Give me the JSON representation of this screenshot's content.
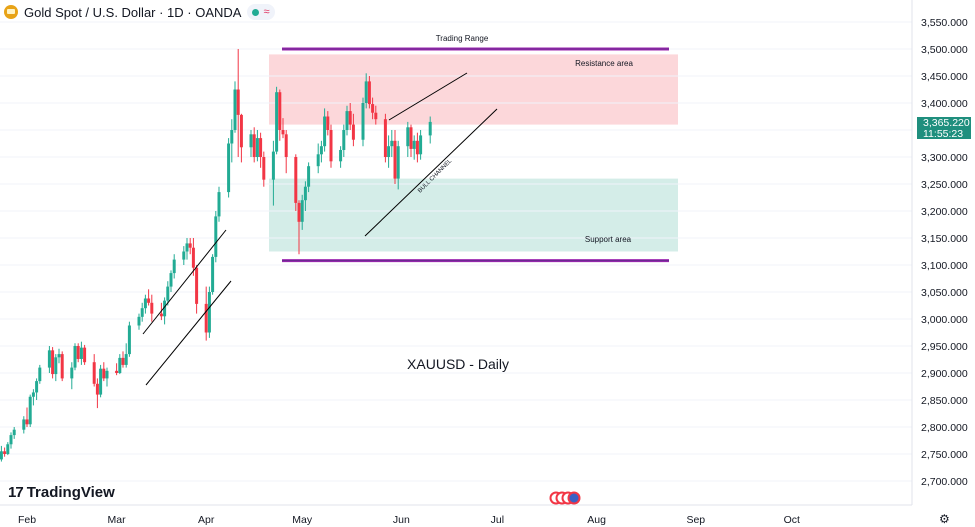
{
  "header": {
    "symbol_title": "Gold Spot / U.S. Dollar · 1D · OANDA",
    "market_status_icon": "green-dot-icon",
    "wave_icon": "≈"
  },
  "price_label": {
    "price": "3,365.220",
    "countdown": "11:55:23"
  },
  "branding": {
    "logo_text": "TradingView"
  },
  "colors": {
    "up": "#22ab94",
    "down": "#f23645",
    "resistance": "#fcd7da",
    "support": "#d4ede8",
    "range_line": "#9c27b0"
  },
  "chart_data": {
    "type": "candlestick",
    "title": "XAUUSD - Daily",
    "xlabel": "",
    "ylabel": "",
    "ylim": [
      2650,
      3580
    ],
    "y_ticks": [
      "3,550.000",
      "3,500.000",
      "3,450.000",
      "3,400.000",
      "3,350.000",
      "3,300.000",
      "3,250.000",
      "3,200.000",
      "3,150.000",
      "3,100.000",
      "3,050.000",
      "3,000.000",
      "2,950.000",
      "2,900.000",
      "2,850.000",
      "2,800.000",
      "2,750.000",
      "2,700.000"
    ],
    "y_tick_values": [
      3550,
      3500,
      3450,
      3400,
      3350,
      3300,
      3250,
      3200,
      3150,
      3100,
      3050,
      3000,
      2950,
      2900,
      2850,
      2800,
      2750,
      2700
    ],
    "x_ticks": [
      "Feb",
      "Mar",
      "Apr",
      "May",
      "Jun",
      "Jul",
      "Aug",
      "Sep",
      "Oct"
    ],
    "x_tick_days": [
      0,
      28,
      56,
      86,
      117,
      147,
      178,
      209,
      239
    ],
    "current_price": 3365.22,
    "candles": [
      [
        -8,
        2740,
        2765,
        2736,
        2755
      ],
      [
        -7,
        2755,
        2762,
        2745,
        2750
      ],
      [
        -6,
        2750,
        2772,
        2748,
        2768
      ],
      [
        -5,
        2768,
        2790,
        2760,
        2785
      ],
      [
        -4,
        2785,
        2800,
        2778,
        2795
      ],
      [
        -1,
        2795,
        2820,
        2788,
        2814
      ],
      [
        0,
        2814,
        2836,
        2800,
        2805
      ],
      [
        1,
        2805,
        2860,
        2800,
        2856
      ],
      [
        2,
        2856,
        2870,
        2840,
        2864
      ],
      [
        3,
        2864,
        2890,
        2850,
        2885
      ],
      [
        4,
        2885,
        2915,
        2880,
        2910
      ],
      [
        7,
        2910,
        2950,
        2900,
        2942
      ],
      [
        8,
        2942,
        2948,
        2890,
        2898
      ],
      [
        9,
        2898,
        2935,
        2885,
        2929
      ],
      [
        10,
        2929,
        2945,
        2918,
        2935
      ],
      [
        11,
        2935,
        2940,
        2885,
        2890
      ],
      [
        14,
        2890,
        2920,
        2870,
        2910
      ],
      [
        15,
        2910,
        2955,
        2905,
        2950
      ],
      [
        16,
        2950,
        2955,
        2920,
        2926
      ],
      [
        17,
        2926,
        2958,
        2915,
        2947
      ],
      [
        18,
        2947,
        2952,
        2915,
        2920
      ],
      [
        21,
        2920,
        2935,
        2875,
        2880
      ],
      [
        22,
        2880,
        2890,
        2835,
        2860
      ],
      [
        23,
        2860,
        2915,
        2855,
        2908
      ],
      [
        24,
        2908,
        2920,
        2885,
        2890
      ],
      [
        25,
        2890,
        2910,
        2875,
        2904
      ],
      [
        28,
        2904,
        2918,
        2896,
        2900
      ],
      [
        29,
        2900,
        2935,
        2898,
        2928
      ],
      [
        30,
        2928,
        2940,
        2910,
        2915
      ],
      [
        31,
        2915,
        2955,
        2910,
        2935
      ],
      [
        32,
        2935,
        2995,
        2930,
        2988
      ],
      [
        35,
        2988,
        3010,
        2980,
        3004
      ],
      [
        36,
        3004,
        3030,
        2995,
        3020
      ],
      [
        37,
        3020,
        3045,
        3010,
        3038
      ],
      [
        38,
        3038,
        3055,
        3025,
        3030
      ],
      [
        39,
        3030,
        3045,
        2995,
        3010
      ],
      [
        42,
        3010,
        3030,
        2998,
        3005
      ],
      [
        43,
        3005,
        3040,
        2990,
        3034
      ],
      [
        44,
        3034,
        3070,
        3025,
        3060
      ],
      [
        45,
        3060,
        3090,
        3050,
        3085
      ],
      [
        46,
        3085,
        3120,
        3075,
        3110
      ],
      [
        49,
        3110,
        3135,
        3100,
        3125
      ],
      [
        50,
        3125,
        3150,
        3110,
        3140
      ],
      [
        51,
        3140,
        3150,
        3120,
        3132
      ],
      [
        52,
        3132,
        3150,
        3080,
        3095
      ],
      [
        53,
        3095,
        3100,
        3010,
        3028
      ],
      [
        56,
        3028,
        3060,
        2960,
        2975
      ],
      [
        57,
        2975,
        3060,
        2965,
        3050
      ],
      [
        58,
        3050,
        3120,
        3045,
        3115
      ],
      [
        59,
        3115,
        3200,
        3105,
        3190
      ],
      [
        60,
        3190,
        3245,
        3180,
        3235
      ],
      [
        63,
        3235,
        3335,
        3225,
        3325
      ],
      [
        64,
        3325,
        3370,
        3290,
        3350
      ],
      [
        65,
        3350,
        3440,
        3345,
        3425
      ],
      [
        66,
        3425,
        3500,
        3300,
        3378
      ],
      [
        67,
        3378,
        3380,
        3290,
        3318
      ],
      [
        70,
        3318,
        3350,
        3300,
        3342
      ],
      [
        71,
        3342,
        3355,
        3290,
        3300
      ],
      [
        72,
        3300,
        3350,
        3292,
        3335
      ],
      [
        73,
        3335,
        3345,
        3280,
        3300
      ],
      [
        74,
        3300,
        3310,
        3245,
        3258
      ],
      [
        77,
        3258,
        3330,
        3210,
        3310
      ],
      [
        78,
        3310,
        3430,
        3305,
        3420
      ],
      [
        79,
        3420,
        3425,
        3330,
        3350
      ],
      [
        80,
        3350,
        3372,
        3335,
        3342
      ],
      [
        81,
        3342,
        3350,
        3270,
        3300
      ],
      [
        84,
        3300,
        3305,
        3200,
        3215
      ],
      [
        85,
        3215,
        3220,
        3120,
        3180
      ],
      [
        86,
        3180,
        3230,
        3165,
        3220
      ],
      [
        87,
        3220,
        3255,
        3200,
        3245
      ],
      [
        88,
        3245,
        3290,
        3235,
        3283
      ],
      [
        91,
        3283,
        3325,
        3270,
        3305
      ],
      [
        92,
        3305,
        3330,
        3290,
        3320
      ],
      [
        93,
        3320,
        3390,
        3310,
        3375
      ],
      [
        94,
        3375,
        3385,
        3340,
        3350
      ],
      [
        95,
        3350,
        3360,
        3280,
        3292
      ],
      [
        98,
        3292,
        3320,
        3280,
        3313
      ],
      [
        99,
        3313,
        3360,
        3300,
        3350
      ],
      [
        100,
        3350,
        3395,
        3340,
        3385
      ],
      [
        101,
        3385,
        3400,
        3350,
        3360
      ],
      [
        102,
        3360,
        3380,
        3320,
        3332
      ],
      [
        105,
        3332,
        3410,
        3320,
        3400
      ],
      [
        106,
        3400,
        3455,
        3390,
        3440
      ],
      [
        107,
        3440,
        3450,
        3390,
        3398
      ],
      [
        108,
        3398,
        3410,
        3370,
        3382
      ],
      [
        109,
        3382,
        3395,
        3360,
        3370
      ],
      [
        112,
        3370,
        3380,
        3290,
        3300
      ],
      [
        113,
        3300,
        3340,
        3280,
        3320
      ],
      [
        114,
        3320,
        3350,
        3300,
        3330
      ],
      [
        115,
        3330,
        3350,
        3250,
        3260
      ],
      [
        116,
        3260,
        3330,
        3240,
        3320
      ],
      [
        119,
        3320,
        3365,
        3300,
        3355
      ],
      [
        120,
        3355,
        3360,
        3300,
        3315
      ],
      [
        121,
        3315,
        3340,
        3295,
        3330
      ],
      [
        122,
        3330,
        3345,
        3290,
        3305
      ],
      [
        123,
        3305,
        3350,
        3295,
        3340
      ],
      [
        126,
        3340,
        3375,
        3325,
        3365
      ]
    ],
    "annotations": {
      "trading_range_label": "Trading Range",
      "resistance_label": "Resistance area",
      "support_label": "Support area",
      "channel_label": "BULL CHANNEL",
      "watermark": "XAUUSD - Daily"
    },
    "resistance_zone": [
      3360,
      3490
    ],
    "support_zone": [
      3125,
      3260
    ],
    "trading_range": [
      3108,
      3500
    ]
  }
}
